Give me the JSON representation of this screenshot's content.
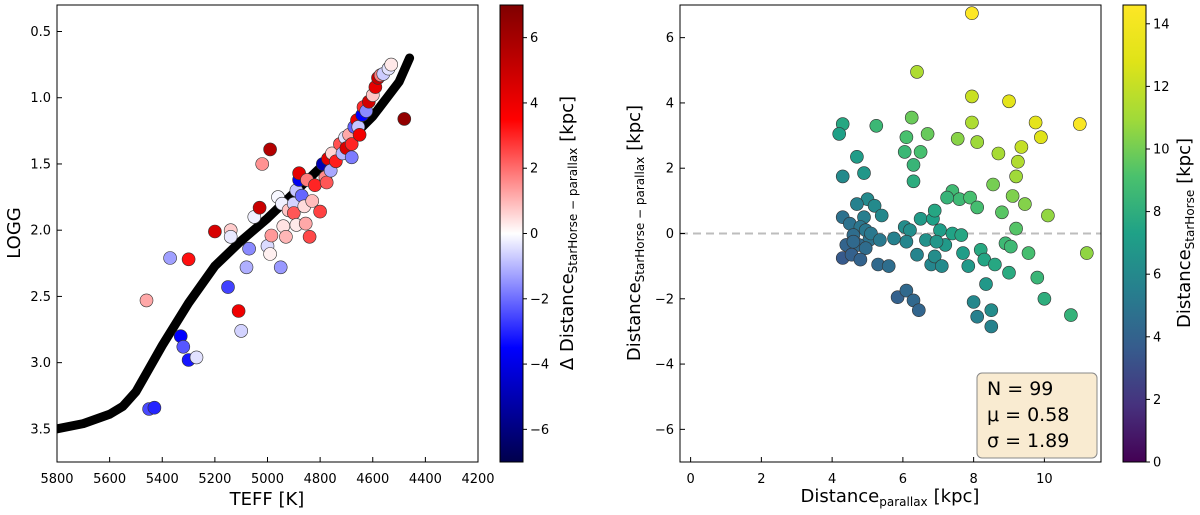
{
  "chart_data": [
    {
      "type": "scatter",
      "xlabel": "TEFF [K]",
      "ylabel": "LOGG",
      "xlim": [
        5800,
        4200
      ],
      "ylim": [
        3.75,
        0.3
      ],
      "xticks": [
        "5800",
        "5600",
        "5400",
        "5200",
        "5000",
        "4800",
        "4600",
        "4400",
        "4200"
      ],
      "yticks": [
        "0.5",
        "1.0",
        "1.5",
        "2.0",
        "2.5",
        "3.0",
        "3.5"
      ],
      "colorbar": {
        "label_main": "Δ Distance",
        "label_sub": "StarHorse − parallax",
        "label_unit": "[kpc]",
        "range": [
          -7,
          7
        ],
        "ticks": [
          "−6",
          "−4",
          "−2",
          "0",
          "2",
          "4",
          "6"
        ],
        "colormap": "seismic"
      },
      "isochrone": [
        [
          5800,
          3.5
        ],
        [
          5700,
          3.46
        ],
        [
          5600,
          3.39
        ],
        [
          5550,
          3.33
        ],
        [
          5500,
          3.22
        ],
        [
          5460,
          3.08
        ],
        [
          5400,
          2.87
        ],
        [
          5300,
          2.55
        ],
        [
          5200,
          2.27
        ],
        [
          5100,
          2.08
        ],
        [
          5000,
          1.91
        ],
        [
          4900,
          1.72
        ],
        [
          4800,
          1.53
        ],
        [
          4700,
          1.34
        ],
        [
          4600,
          1.14
        ],
        [
          4500,
          0.88
        ],
        [
          4460,
          0.7
        ]
      ],
      "points": [
        {
          "teff": 5450,
          "logg": 3.35,
          "d": -2.5
        },
        {
          "teff": 5430,
          "logg": 3.34,
          "d": -3
        },
        {
          "teff": 5330,
          "logg": 2.8,
          "d": -3.5
        },
        {
          "teff": 5320,
          "logg": 2.88,
          "d": -2.3
        },
        {
          "teff": 5300,
          "logg": 2.98,
          "d": -3.2
        },
        {
          "teff": 5270,
          "logg": 2.96,
          "d": -0.4
        },
        {
          "teff": 5460,
          "logg": 2.53,
          "d": 1.2
        },
        {
          "teff": 5370,
          "logg": 2.21,
          "d": -1.3
        },
        {
          "teff": 5300,
          "logg": 2.22,
          "d": 3.3
        },
        {
          "teff": 5200,
          "logg": 2.01,
          "d": 4.6
        },
        {
          "teff": 5150,
          "logg": 2.43,
          "d": -2.6
        },
        {
          "teff": 5110,
          "logg": 2.61,
          "d": 3.9
        },
        {
          "teff": 5100,
          "logg": 2.76,
          "d": -0.6
        },
        {
          "teff": 5140,
          "logg": 2.0,
          "d": 0.7
        },
        {
          "teff": 5140,
          "logg": 2.05,
          "d": -0.3
        },
        {
          "teff": 5080,
          "logg": 2.28,
          "d": -1.1
        },
        {
          "teff": 5070,
          "logg": 2.14,
          "d": -1.6
        },
        {
          "teff": 5050,
          "logg": 1.9,
          "d": -0.2
        },
        {
          "teff": 5030,
          "logg": 1.83,
          "d": 5.0
        },
        {
          "teff": 5020,
          "logg": 1.5,
          "d": 1.5
        },
        {
          "teff": 4990,
          "logg": 1.39,
          "d": 5.6
        },
        {
          "teff": 5000,
          "logg": 2.12,
          "d": -0.5
        },
        {
          "teff": 4990,
          "logg": 2.18,
          "d": 0.2
        },
        {
          "teff": 4985,
          "logg": 2.04,
          "d": 1.4
        },
        {
          "teff": 4950,
          "logg": 2.28,
          "d": -1.4
        },
        {
          "teff": 4940,
          "logg": 1.97,
          "d": 0.4
        },
        {
          "teff": 4930,
          "logg": 2.05,
          "d": 1.0
        },
        {
          "teff": 4960,
          "logg": 1.75,
          "d": -0.1
        },
        {
          "teff": 4945,
          "logg": 1.8,
          "d": -0.2
        },
        {
          "teff": 4920,
          "logg": 1.85,
          "d": 0.8
        },
        {
          "teff": 4900,
          "logg": 1.8,
          "d": -0.6
        },
        {
          "teff": 4900,
          "logg": 1.87,
          "d": 2.3
        },
        {
          "teff": 4890,
          "logg": 1.7,
          "d": -0.8
        },
        {
          "teff": 4890,
          "logg": 1.96,
          "d": 0.3
        },
        {
          "teff": 4880,
          "logg": 1.62,
          "d": -3.8
        },
        {
          "teff": 4880,
          "logg": 1.57,
          "d": 4.2
        },
        {
          "teff": 4870,
          "logg": 1.74,
          "d": -2.1
        },
        {
          "teff": 4860,
          "logg": 1.82,
          "d": 0.5
        },
        {
          "teff": 4855,
          "logg": 1.95,
          "d": 1.2
        },
        {
          "teff": 4850,
          "logg": 1.62,
          "d": 1.8
        },
        {
          "teff": 4840,
          "logg": 2.05,
          "d": 2.5
        },
        {
          "teff": 4830,
          "logg": 1.78,
          "d": 0.9
        },
        {
          "teff": 4820,
          "logg": 1.66,
          "d": 3.0
        },
        {
          "teff": 4800,
          "logg": 1.86,
          "d": 2.6
        },
        {
          "teff": 4790,
          "logg": 1.5,
          "d": -5.0
        },
        {
          "teff": 4780,
          "logg": 1.6,
          "d": 1.6
        },
        {
          "teff": 4775,
          "logg": 1.64,
          "d": 2.3
        },
        {
          "teff": 4770,
          "logg": 1.46,
          "d": 4.2
        },
        {
          "teff": 4760,
          "logg": 1.55,
          "d": -1.2
        },
        {
          "teff": 4755,
          "logg": 1.42,
          "d": 0.6
        },
        {
          "teff": 4740,
          "logg": 1.48,
          "d": 3.1
        },
        {
          "teff": 4725,
          "logg": 1.35,
          "d": 2.4
        },
        {
          "teff": 4715,
          "logg": 1.42,
          "d": -1.0
        },
        {
          "teff": 4705,
          "logg": 1.3,
          "d": -0.4
        },
        {
          "teff": 4700,
          "logg": 1.38,
          "d": 4.5
        },
        {
          "teff": 4690,
          "logg": 1.28,
          "d": 1.2
        },
        {
          "teff": 4680,
          "logg": 1.35,
          "d": 3.0
        },
        {
          "teff": 4680,
          "logg": 1.45,
          "d": -1.8
        },
        {
          "teff": 4670,
          "logg": 1.22,
          "d": -2.2
        },
        {
          "teff": 4660,
          "logg": 1.17,
          "d": 4.0
        },
        {
          "teff": 4655,
          "logg": 1.22,
          "d": -0.8
        },
        {
          "teff": 4650,
          "logg": 1.28,
          "d": 3.8
        },
        {
          "teff": 4640,
          "logg": 1.13,
          "d": -3.5
        },
        {
          "teff": 4635,
          "logg": 1.07,
          "d": 2.9
        },
        {
          "teff": 4625,
          "logg": 1.1,
          "d": -1.6
        },
        {
          "teff": 4615,
          "logg": 1.03,
          "d": 4.7
        },
        {
          "teff": 4600,
          "logg": 0.98,
          "d": 0.8
        },
        {
          "teff": 4590,
          "logg": 0.92,
          "d": 4.2
        },
        {
          "teff": 4580,
          "logg": 0.85,
          "d": 5.1
        },
        {
          "teff": 4570,
          "logg": 0.83,
          "d": 1.8
        },
        {
          "teff": 4560,
          "logg": 0.82,
          "d": -0.7
        },
        {
          "teff": 4540,
          "logg": 0.78,
          "d": -0.4
        },
        {
          "teff": 4530,
          "logg": 0.75,
          "d": 0.3
        },
        {
          "teff": 4480,
          "logg": 1.16,
          "d": 6.5
        }
      ]
    },
    {
      "type": "scatter",
      "xlabel_main": "Distance",
      "xlabel_sub": "parallax",
      "xlabel_unit": "[kpc]",
      "ylabel_main": "Distance",
      "ylabel_sub": "StarHorse − parallax",
      "ylabel_unit": "[kpc]",
      "xlim": [
        -0.3,
        11.6
      ],
      "ylim": [
        -7,
        7
      ],
      "xticks": [
        "0",
        "2",
        "4",
        "6",
        "8",
        "10"
      ],
      "yticks": [
        "−6",
        "−4",
        "−2",
        "0",
        "2",
        "4",
        "6"
      ],
      "reference_line_y": 0,
      "colorbar": {
        "label_main": "Distance",
        "label_sub": "StarHorse",
        "label_unit": "[kpc]",
        "range": [
          0,
          14.6
        ],
        "ticks": [
          "0",
          "2",
          "4",
          "6",
          "8",
          "10",
          "12",
          "14"
        ],
        "colormap": "viridis"
      },
      "stats": {
        "n": "N = 99",
        "mu": "μ =  0.58",
        "sigma": "σ =  1.89"
      },
      "points": [
        [
          4.3,
          3.35
        ],
        [
          4.2,
          3.05
        ],
        [
          4.7,
          2.35
        ],
        [
          4.3,
          1.75
        ],
        [
          4.9,
          1.85
        ],
        [
          5.0,
          1.05
        ],
        [
          4.7,
          0.9
        ],
        [
          4.3,
          0.5
        ],
        [
          4.5,
          0.3
        ],
        [
          4.9,
          0.5
        ],
        [
          5.2,
          0.85
        ],
        [
          5.4,
          0.55
        ],
        [
          4.8,
          0.2
        ],
        [
          4.6,
          -0.05
        ],
        [
          4.95,
          0.1
        ],
        [
          5.05,
          -0.2
        ],
        [
          4.4,
          -0.35
        ],
        [
          4.75,
          -0.35
        ],
        [
          4.95,
          -0.45
        ],
        [
          4.3,
          -0.75
        ],
        [
          4.55,
          -0.65
        ],
        [
          4.8,
          -0.8
        ],
        [
          5.3,
          -0.95
        ],
        [
          5.6,
          -1.0
        ],
        [
          4.6,
          -0.25
        ],
        [
          5.1,
          0.0
        ],
        [
          5.35,
          -0.2
        ],
        [
          5.25,
          3.3
        ],
        [
          6.05,
          2.5
        ],
        [
          6.25,
          3.55
        ],
        [
          6.4,
          4.95
        ],
        [
          6.1,
          2.95
        ],
        [
          6.3,
          2.1
        ],
        [
          6.5,
          2.5
        ],
        [
          6.7,
          3.05
        ],
        [
          6.3,
          1.6
        ],
        [
          6.05,
          0.2
        ],
        [
          6.5,
          0.45
        ],
        [
          6.2,
          0.1
        ],
        [
          6.85,
          0.45
        ],
        [
          6.1,
          -0.25
        ],
        [
          6.4,
          -0.65
        ],
        [
          6.65,
          -0.2
        ],
        [
          6.8,
          -0.95
        ],
        [
          5.75,
          -0.15
        ],
        [
          5.85,
          -1.95
        ],
        [
          6.1,
          -1.75
        ],
        [
          6.3,
          -2.05
        ],
        [
          6.45,
          -2.35
        ],
        [
          6.9,
          -0.7
        ],
        [
          7.05,
          0.1
        ],
        [
          7.2,
          -0.35
        ],
        [
          7.4,
          1.3
        ],
        [
          7.55,
          2.9
        ],
        [
          7.6,
          1.05
        ],
        [
          7.7,
          -0.6
        ],
        [
          7.85,
          -1.0
        ],
        [
          7.9,
          1.1
        ],
        [
          7.95,
          4.2
        ],
        [
          7.95,
          3.4
        ],
        [
          7.95,
          6.75
        ],
        [
          8.1,
          2.8
        ],
        [
          8.1,
          0.8
        ],
        [
          8.2,
          -0.5
        ],
        [
          8.3,
          -0.8
        ],
        [
          8.0,
          -2.1
        ],
        [
          8.1,
          -2.55
        ],
        [
          8.5,
          -2.35
        ],
        [
          8.5,
          -2.85
        ],
        [
          7.4,
          0.0
        ],
        [
          6.9,
          0.7
        ],
        [
          7.1,
          -1.0
        ],
        [
          7.65,
          -0.05
        ],
        [
          8.55,
          1.5
        ],
        [
          8.7,
          2.45
        ],
        [
          8.8,
          0.65
        ],
        [
          8.9,
          -0.3
        ],
        [
          9.05,
          -0.4
        ],
        [
          9.2,
          0.15
        ],
        [
          9.1,
          1.15
        ],
        [
          9.2,
          1.75
        ],
        [
          9.25,
          2.2
        ],
        [
          9.35,
          2.65
        ],
        [
          9.45,
          0.9
        ],
        [
          9.55,
          -0.6
        ],
        [
          9.0,
          -1.2
        ],
        [
          9.0,
          4.05
        ],
        [
          9.75,
          3.4
        ],
        [
          9.9,
          2.95
        ],
        [
          10.1,
          0.55
        ],
        [
          9.8,
          -1.35
        ],
        [
          10.0,
          -2.0
        ],
        [
          10.75,
          -2.5
        ],
        [
          11.0,
          3.35
        ],
        [
          11.2,
          -0.6
        ],
        [
          7.25,
          1.1
        ],
        [
          6.95,
          -0.25
        ],
        [
          8.35,
          -1.55
        ],
        [
          8.6,
          -0.95
        ]
      ]
    }
  ]
}
